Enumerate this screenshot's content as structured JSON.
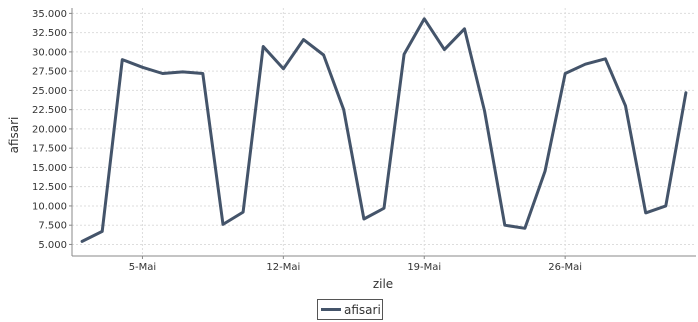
{
  "chart_data": {
    "type": "line",
    "xlabel": "zile",
    "ylabel": "afisari",
    "x_tick_labels": [
      {
        "day": 4,
        "label": "5-Mai"
      },
      {
        "day": 11,
        "label": "12-Mai"
      },
      {
        "day": 18,
        "label": "19-Mai"
      },
      {
        "day": 25,
        "label": "26-Mai"
      }
    ],
    "y_ticks": [
      "5.000",
      "7.500",
      "10.000",
      "12.500",
      "15.000",
      "17.500",
      "20.000",
      "22.500",
      "25.000",
      "27.500",
      "30.000",
      "32.500",
      "35.000"
    ],
    "y_tick_values": [
      5000,
      7500,
      10000,
      12500,
      15000,
      17500,
      20000,
      22500,
      25000,
      27500,
      30000,
      32500,
      35000
    ],
    "ylim": [
      3500,
      35700
    ],
    "grid": true,
    "legend_position": "bottom",
    "series": [
      {
        "name": "afisari",
        "color": "#44546a",
        "x": [
          1,
          2,
          3,
          4,
          5,
          6,
          7,
          8,
          9,
          10,
          11,
          12,
          13,
          14,
          15,
          16,
          17,
          18,
          19,
          20,
          21,
          22,
          23,
          24,
          25,
          26,
          27,
          28,
          29,
          30,
          31
        ],
        "values": [
          5400,
          6700,
          29000,
          28000,
          27200,
          27400,
          27200,
          7600,
          9200,
          30700,
          27800,
          31600,
          29600,
          22500,
          8300,
          9700,
          29700,
          34300,
          30300,
          33000,
          22300,
          7500,
          7100,
          14500,
          27200,
          28400,
          29100,
          23000,
          9100,
          10000,
          24700
        ]
      }
    ]
  }
}
